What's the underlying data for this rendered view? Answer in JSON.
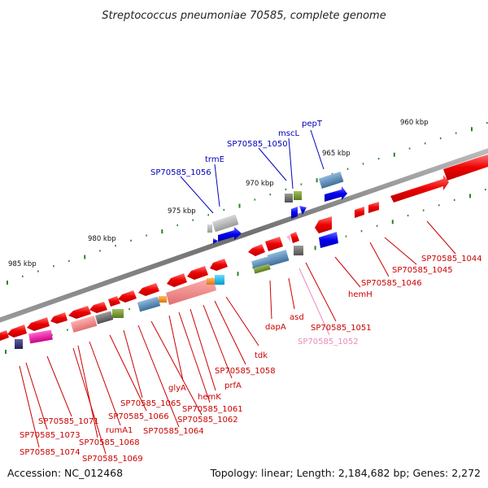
{
  "title": "Streptococcus pneumoniae 70585, complete genome",
  "footer": {
    "accession": "Accession: NC_012468",
    "topology": "Topology: linear; Length: 2,184,682 bp; Genes: 2,272"
  },
  "colors": {
    "forward_label": "#0000bb",
    "reverse_label": "#cc0000",
    "pseudo_label": "#ee88bb",
    "forward_arrow": "#0000ee",
    "reverse_arrow": "#ee0000",
    "backbone": "#777777",
    "tick": "#228822"
  },
  "ticks": [
    {
      "label": "960 kbp"
    },
    {
      "label": "965 kbp"
    },
    {
      "label": "970 kbp"
    },
    {
      "label": "975 kbp"
    },
    {
      "label": "980 kbp"
    },
    {
      "label": "985 kbp"
    }
  ],
  "labels_top": [
    {
      "text": "pepT"
    },
    {
      "text": "mscL"
    },
    {
      "text": "SP70585_1050"
    },
    {
      "text": "trmE"
    },
    {
      "text": "SP70585_1056"
    }
  ],
  "labels_bottom": [
    {
      "text": "SP70585_1044"
    },
    {
      "text": "SP70585_1045"
    },
    {
      "text": "SP70585_1046"
    },
    {
      "text": "hemH"
    },
    {
      "text": "asd"
    },
    {
      "text": "SP70585_1051"
    },
    {
      "text": "SP70585_1052"
    },
    {
      "text": "dapA"
    },
    {
      "text": "tdk"
    },
    {
      "text": "SP70585_1058"
    },
    {
      "text": "prfA"
    },
    {
      "text": "hemK"
    },
    {
      "text": "glyA"
    },
    {
      "text": "SP70585_1061"
    },
    {
      "text": "SP70585_1062"
    },
    {
      "text": "SP70585_1064"
    },
    {
      "text": "SP70585_1065"
    },
    {
      "text": "SP70585_1066"
    },
    {
      "text": "rumA1"
    },
    {
      "text": "SP70585_1068"
    },
    {
      "text": "SP70585_1069"
    },
    {
      "text": "SP70585_1071"
    },
    {
      "text": "SP70585_1073"
    },
    {
      "text": "SP70585_1074"
    }
  ]
}
